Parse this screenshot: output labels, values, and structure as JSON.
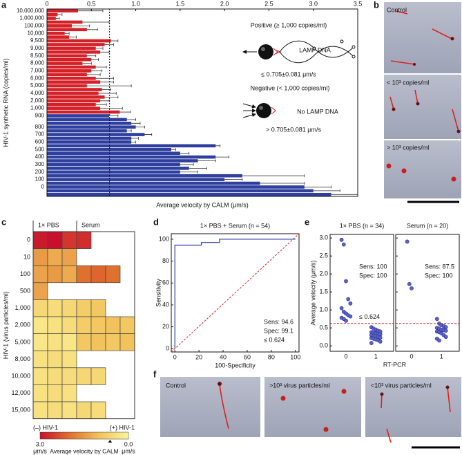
{
  "panel_labels": [
    "a",
    "b",
    "c",
    "d",
    "e",
    "f"
  ],
  "chart_data": [
    {
      "type": "bar",
      "orientation": "horizontal",
      "xlabel": "Average velocity by CALM (μm/s)",
      "ylabel": "HIV-1 synthetic RNA (copies/ml)",
      "xlim": [
        0,
        3.5
      ],
      "xticks": [
        0,
        0.5,
        {
          "value": 1,
          "label": "1.0"
        },
        1.5,
        {
          "value": 2,
          "label": "2.0"
        },
        2.5,
        {
          "value": 3,
          "label": "3.0"
        },
        3.5
      ],
      "threshold": 0.705,
      "categories": [
        "10,000,000",
        null,
        "1,000,000",
        null,
        "100,000",
        null,
        "10,000",
        null,
        "9,500",
        null,
        "9,000",
        null,
        "8,500",
        null,
        "8,000",
        null,
        "7,000",
        null,
        "6,000",
        null,
        "5,000",
        null,
        "4,000",
        null,
        "2,000",
        null,
        "1,000",
        null,
        "900",
        null,
        null,
        "800",
        null,
        "700",
        null,
        "600",
        null,
        "500",
        null,
        "400",
        null,
        "300",
        null,
        "200",
        null,
        "100",
        null,
        "0",
        null,
        null
      ],
      "series": [
        {
          "color": "#d42027",
          "values": [
            0.35,
            0.12,
            0.1,
            0.4,
            0.28,
            0.45,
            0.2,
            0.25,
            0.72,
            0.65,
            0.55,
            0.6,
            0.45,
            0.5,
            0.4,
            0.55,
            0.5,
            0.45,
            0.55,
            0.6,
            0.45,
            0.62,
            0.58,
            0.65,
            0.6,
            0.55,
            0.6,
            0.82,
            null,
            null,
            null,
            null,
            null,
            null,
            null,
            null,
            null,
            null,
            null,
            null,
            null,
            null,
            null,
            null,
            null,
            null,
            null,
            null,
            null,
            null
          ],
          "errors": [
            0.28,
            0.05,
            0.04,
            0.3,
            0.2,
            0.12,
            0.05,
            0.08,
            0.08,
            0.1,
            0.08,
            0.1,
            0.1,
            0.08,
            0.1,
            0.12,
            0.12,
            0.15,
            0.2,
            0.15,
            0.5,
            0.1,
            0.2,
            0.15,
            0.1,
            0.12,
            0.25,
            0.12,
            null,
            null,
            null,
            null,
            null,
            null,
            null,
            null,
            null,
            null,
            null,
            null,
            null,
            null,
            null,
            null,
            null,
            null,
            null,
            null,
            null,
            null
          ]
        },
        {
          "color": "#2e3f9e",
          "values": [
            null,
            null,
            null,
            null,
            null,
            null,
            null,
            null,
            null,
            null,
            null,
            null,
            null,
            null,
            null,
            null,
            null,
            null,
            null,
            null,
            null,
            null,
            null,
            null,
            null,
            null,
            null,
            null,
            0.7,
            0.9,
            0.95,
            1.0,
            0.9,
            1.1,
            0.95,
            0.95,
            1.9,
            1.4,
            1.5,
            1.9,
            1.7,
            1.5,
            1.6,
            1.5,
            2.2,
            2.0,
            2.4,
            2.9,
            3.0,
            3.2
          ],
          "errors": [
            null,
            null,
            null,
            null,
            null,
            null,
            null,
            null,
            null,
            null,
            null,
            null,
            null,
            null,
            null,
            null,
            null,
            null,
            null,
            null,
            null,
            null,
            null,
            null,
            null,
            null,
            null,
            null,
            0.1,
            0.1,
            0.1,
            0.1,
            0.05,
            0.08,
            0.08,
            0.05,
            0.05,
            0.05,
            0.1,
            0.15,
            0.2,
            0.15,
            0.2,
            0.2,
            0.7,
            0.2,
            0.5,
            0.3,
            0.3,
            0.3
          ]
        }
      ],
      "annotations": [
        {
          "text": "Positive (≥ 1,000 copies/ml)",
          "color": "#d42027"
        },
        {
          "text": "LAMP DNA",
          "color": "#111111"
        },
        {
          "text": "≤ 0.705±0.081 µm/s",
          "color": "#111111"
        },
        {
          "text": "Negative (< 1,000 copies/ml)",
          "color": "#2e3f9e"
        },
        {
          "text": "No LAMP DNA",
          "color": "#111111"
        },
        {
          "text": "> 0.705±0.081 µm/s",
          "color": "#111111"
        }
      ]
    },
    {
      "type": "heatmap",
      "ylabel": "HIV-1 (virus particles/ml)",
      "rows": [
        "0",
        "10",
        "100",
        "500",
        "1,000",
        "2,000",
        "5,000",
        "8,000",
        "10,000",
        "12,000",
        "15,000"
      ],
      "columns": [
        "1× PBS",
        null,
        null,
        "Serum",
        null,
        null,
        null
      ],
      "values": [
        [
          2.9,
          3.0,
          2.6,
          2.7,
          null,
          null,
          null
        ],
        [
          1.5,
          1.3,
          1.4,
          null,
          null,
          null,
          null
        ],
        [
          1.4,
          1.5,
          1.3,
          2.0,
          2.1,
          2.0,
          null
        ],
        [
          1.4,
          null,
          null,
          null,
          null,
          null,
          null
        ],
        [
          0.6,
          0.5,
          0.6,
          0.8,
          0.9,
          null,
          null
        ],
        [
          0.3,
          0.4,
          0.5,
          0.8,
          0.9,
          1.0,
          0.9
        ],
        [
          0.3,
          0.4,
          0.3,
          0.9,
          1.0,
          0.9,
          1.0
        ],
        [
          0.4,
          0.5,
          0.4,
          null,
          null,
          null,
          null
        ],
        [
          0.4,
          0.5,
          0.5,
          0.6,
          0.6,
          null,
          null
        ],
        [
          0.4,
          0.5,
          0.4,
          null,
          null,
          null,
          null
        ],
        [
          0.4,
          0.5,
          0.4,
          0.6,
          0.5,
          null,
          null
        ]
      ],
      "colormap": [
        "#c8102e",
        "#e0702e",
        "#f2c35c",
        "#faf59a"
      ],
      "zlim": [
        3,
        0
      ],
      "zticks": [
        {
          "value": 3,
          "label": "3.0"
        },
        {
          "value": 0,
          "label": "0.0"
        }
      ],
      "unit": "μm/s",
      "colorbar_label": "Average velocity by CALM",
      "end_labels": [
        "(–) HIV-1",
        "(+) HIV-1"
      ],
      "threshold": 0.624
    },
    {
      "type": "line",
      "title": "1× PBS + Serum (n = 54)",
      "xlabel": "100-Specificity",
      "ylabel": "Sensitivity",
      "xlim": [
        -3,
        103
      ],
      "ylim": [
        -3,
        105
      ],
      "xticks": [
        0,
        20,
        40,
        60,
        80,
        100
      ],
      "yticks": [
        0,
        20,
        40,
        60,
        80,
        100
      ],
      "x": [
        0,
        0,
        22,
        22,
        37,
        37,
        100
      ],
      "values": [
        0,
        94.6,
        94.6,
        97,
        97,
        100,
        100
      ],
      "color": "#2e3f9e",
      "reference_color": "#d42027",
      "annotations": [
        "Sens: 94.6",
        "Spec: 99.1",
        "≤ 0.624"
      ]
    },
    {
      "type": "scatter",
      "xlabel": "RT-PCR",
      "ylabel": "Average velocity (μm/s)",
      "ylim": [
        -0.15,
        3.1
      ],
      "yticks": [
        {
          "value": 0,
          "label": "0.0"
        },
        0.5,
        {
          "value": 1,
          "label": "1.0"
        },
        1.5,
        {
          "value": 2,
          "label": "2.0"
        },
        2.5,
        {
          "value": 3,
          "label": "3.0"
        }
      ],
      "threshold": 0.624,
      "threshold_label": "≤ 0.624",
      "threshold_color": "#d42027",
      "color": "#5a63c9",
      "panels": [
        {
          "title": "1× PBS (n = 34)",
          "categories": [
            "0",
            "1"
          ],
          "values": [
            [
              2.95,
              2.82,
              1.8,
              1.3,
              1.18,
              1.05,
              0.95,
              0.9,
              0.85,
              0.82,
              0.78,
              0.75,
              0.7
            ],
            [
              0.52,
              0.48,
              0.45,
              0.42,
              0.4,
              0.38,
              0.36,
              0.35,
              0.33,
              0.32,
              0.3,
              0.28,
              0.27,
              0.25,
              0.23,
              0.22,
              0.2,
              0.18,
              0.16,
              0.12,
              0.08
            ]
          ],
          "annotations": [
            "Sens: 100",
            "Spec: 100"
          ]
        },
        {
          "title": "Serum (n = 20)",
          "categories": [
            "0",
            "1"
          ],
          "values": [
            [
              2.9,
              1.72,
              1.6
            ],
            [
              0.75,
              0.62,
              0.58,
              0.55,
              0.52,
              0.5,
              0.48,
              0.45,
              0.44,
              0.42,
              0.4,
              0.38,
              0.35,
              0.3,
              0.25,
              0.2,
              0.15
            ]
          ],
          "annotations": [
            "Sens: 87.5",
            "Spec: 100"
          ]
        }
      ]
    }
  ],
  "images": {
    "b": [
      "Control",
      "< 10³ copies/ml",
      "> 10³ copies/ml"
    ],
    "f": [
      "Control",
      ">10³ virus particles/ml",
      "<10³ virus particles/ml"
    ]
  }
}
